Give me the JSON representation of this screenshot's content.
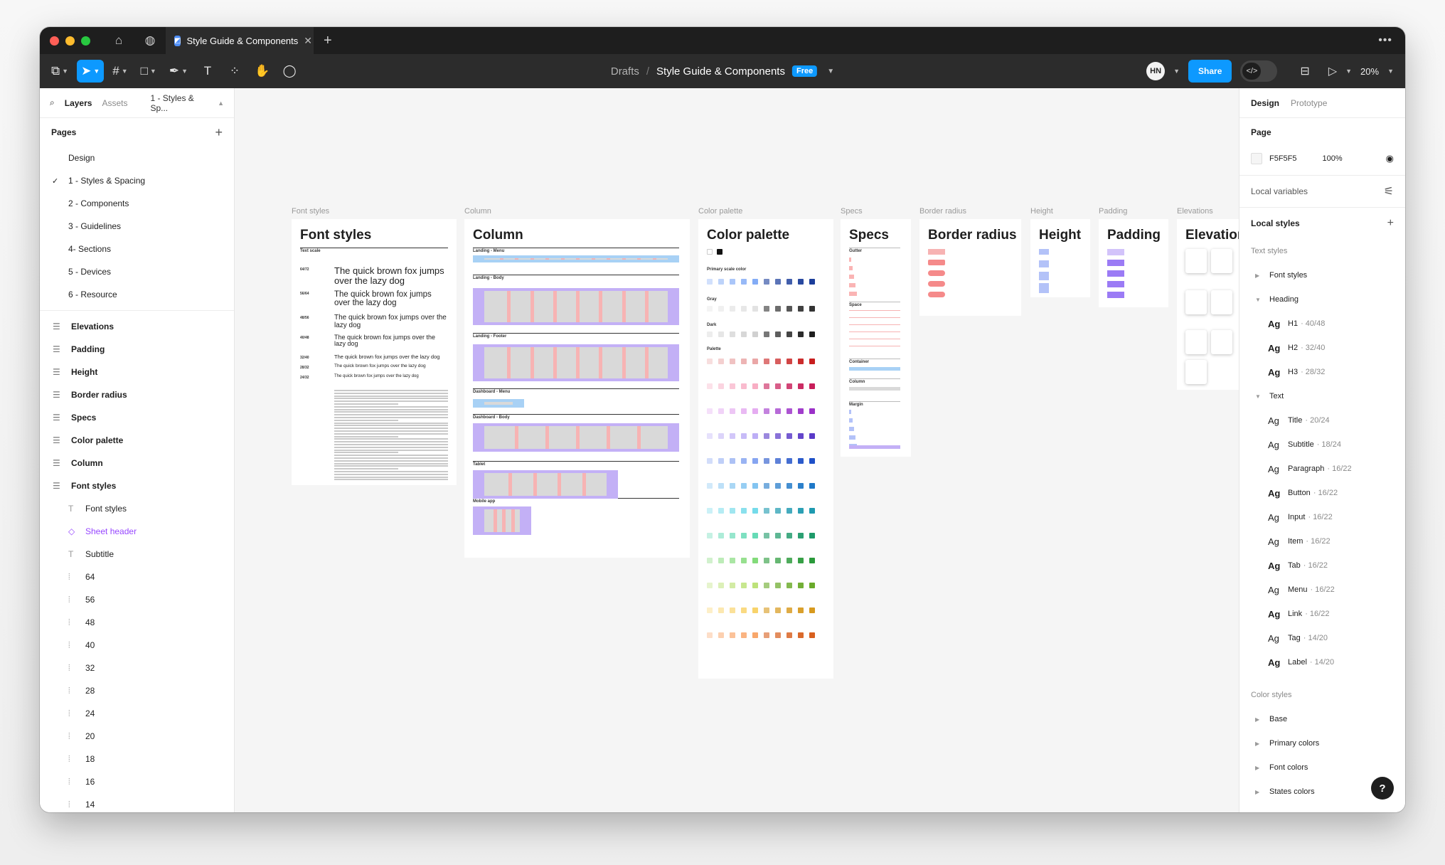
{
  "tabbar": {
    "tab_title": "Style Guide & Components",
    "more": "•••"
  },
  "toolbar": {
    "breadcrumb_drafts": "Drafts",
    "breadcrumb_sep": "/",
    "file_name": "Style Guide & Components",
    "plan_badge": "Free",
    "avatar_initials": "HN",
    "share_label": "Share",
    "zoom": "20%"
  },
  "left_panel": {
    "tab_layers": "Layers",
    "tab_assets": "Assets",
    "current_page": "1 - Styles & Sp...",
    "pages_heading": "Pages",
    "pages": [
      "Design",
      "1 - Styles & Spacing",
      "2 - Components",
      "3 - Guidelines",
      "4- Sections",
      "5 - Devices",
      "6 - Resource"
    ],
    "layers": [
      "Elevations",
      "Padding",
      "Height",
      "Border radius",
      "Specs",
      "Color palette",
      "Column",
      "Font styles"
    ],
    "sublayers": [
      {
        "label": "Font styles",
        "icon": "text-icon"
      },
      {
        "label": "Sheet header",
        "icon": "component-icon"
      },
      {
        "label": "Subtitle",
        "icon": "text-icon"
      },
      {
        "label": "64",
        "icon": "frame-icon"
      },
      {
        "label": "56",
        "icon": "frame-icon"
      },
      {
        "label": "48",
        "icon": "frame-icon"
      },
      {
        "label": "40",
        "icon": "frame-icon"
      },
      {
        "label": "32",
        "icon": "frame-icon"
      },
      {
        "label": "28",
        "icon": "frame-icon"
      },
      {
        "label": "24",
        "icon": "frame-icon"
      },
      {
        "label": "20",
        "icon": "frame-icon"
      },
      {
        "label": "18",
        "icon": "frame-icon"
      },
      {
        "label": "16",
        "icon": "frame-icon"
      },
      {
        "label": "14",
        "icon": "frame-icon"
      }
    ]
  },
  "canvas": {
    "frames": {
      "font_styles": {
        "label": "Font styles",
        "title": "Font styles",
        "subhead": "Text scale"
      },
      "column": {
        "label": "Column",
        "title": "Column"
      },
      "color_palette": {
        "label": "Color palette",
        "title": "Color palette"
      },
      "specs": {
        "label": "Specs",
        "title": "Specs"
      },
      "border_radius": {
        "label": "Border radius",
        "title": "Border radius"
      },
      "height": {
        "label": "Height",
        "title": "Height"
      },
      "padding": {
        "label": "Padding",
        "title": "Padding"
      },
      "elevations": {
        "label": "Elevations",
        "title": "Elevations"
      }
    },
    "font_samples": [
      {
        "tag": "64/72",
        "text": "The quick brown fox jumps over the lazy dog"
      },
      {
        "tag": "56/64",
        "text": "The quick brown fox jumps over the lazy dog"
      },
      {
        "tag": "48/56",
        "text": "The quick brown fox jumps over the lazy dog"
      },
      {
        "tag": "40/48",
        "text": "The quick brown fox jumps over the lazy dog"
      },
      {
        "tag": "32/40",
        "text": "The quick brown fox jumps over the lazy dog"
      },
      {
        "tag": "28/32",
        "text": "The quick brown fox jumps over the lazy dog"
      },
      {
        "tag": "24/32",
        "text": "The quick brown fox jumps over the lazy dog"
      }
    ],
    "column_sections": [
      "Landing - Menu",
      "Landing - Body",
      "Landing - Footer",
      "Dashboard - Menu",
      "Dashboard - Body",
      "Tablet",
      "Mobile app"
    ],
    "palette_sections": [
      "Primary scale color",
      "Gray",
      "Dark",
      "Palette"
    ],
    "palette_rows": [
      "#e8a0a0",
      "#f7a8c0",
      "#e3a6f0",
      "#b8a8f5",
      "#7d9ef0",
      "#7ac0f0",
      "#6ad8e8",
      "#5ad8b0",
      "#7ad870",
      "#b8e070",
      "#f8d060",
      "#f8a060"
    ],
    "palette_rows_dark": [
      "#c81e1e",
      "#c81e5a",
      "#9b30c8",
      "#5a3ac8",
      "#1e50c8",
      "#1e78c8",
      "#1e9ab0",
      "#1e9a6a",
      "#2a9a3a",
      "#6aaa2a",
      "#d89a1e",
      "#d8601e"
    ],
    "specs_sections": [
      "Gutter",
      "Space",
      "Container",
      "Column",
      "Margin"
    ]
  },
  "right_panel": {
    "tab_design": "Design",
    "tab_prototype": "Prototype",
    "page_heading": "Page",
    "page_color": "F5F5F5",
    "page_opacity": "100%",
    "local_variables": "Local variables",
    "local_styles": "Local styles",
    "text_styles_heading": "Text styles",
    "group_font_styles": "Font styles",
    "group_heading": "Heading",
    "heading_styles": [
      {
        "name": "H1",
        "size": "· 40/48"
      },
      {
        "name": "H2",
        "size": "· 32/40"
      },
      {
        "name": "H3",
        "size": "· 28/32"
      }
    ],
    "group_text": "Text",
    "text_styles": [
      {
        "name": "Title",
        "size": "· 20/24",
        "bold": false
      },
      {
        "name": "Subtitle",
        "size": "· 18/24",
        "bold": false
      },
      {
        "name": "Paragraph",
        "size": "· 16/22",
        "bold": false
      },
      {
        "name": "Button",
        "size": "· 16/22",
        "bold": true
      },
      {
        "name": "Input",
        "size": "· 16/22",
        "bold": false
      },
      {
        "name": "Item",
        "size": "· 16/22",
        "bold": false
      },
      {
        "name": "Tab",
        "size": "· 16/22",
        "bold": true
      },
      {
        "name": "Menu",
        "size": "· 16/22",
        "bold": false
      },
      {
        "name": "Link",
        "size": "· 16/22",
        "bold": true
      },
      {
        "name": "Tag",
        "size": "· 14/20",
        "bold": false
      },
      {
        "name": "Label",
        "size": "· 14/20",
        "bold": true
      }
    ],
    "color_styles_heading": "Color styles",
    "color_styles": [
      "Base",
      "Primary colors",
      "Font colors",
      "States colors"
    ],
    "help": "?"
  },
  "colors": {
    "accent": "#0d99ff",
    "component": "#9747ff",
    "canvas": "#f5f5f5"
  }
}
